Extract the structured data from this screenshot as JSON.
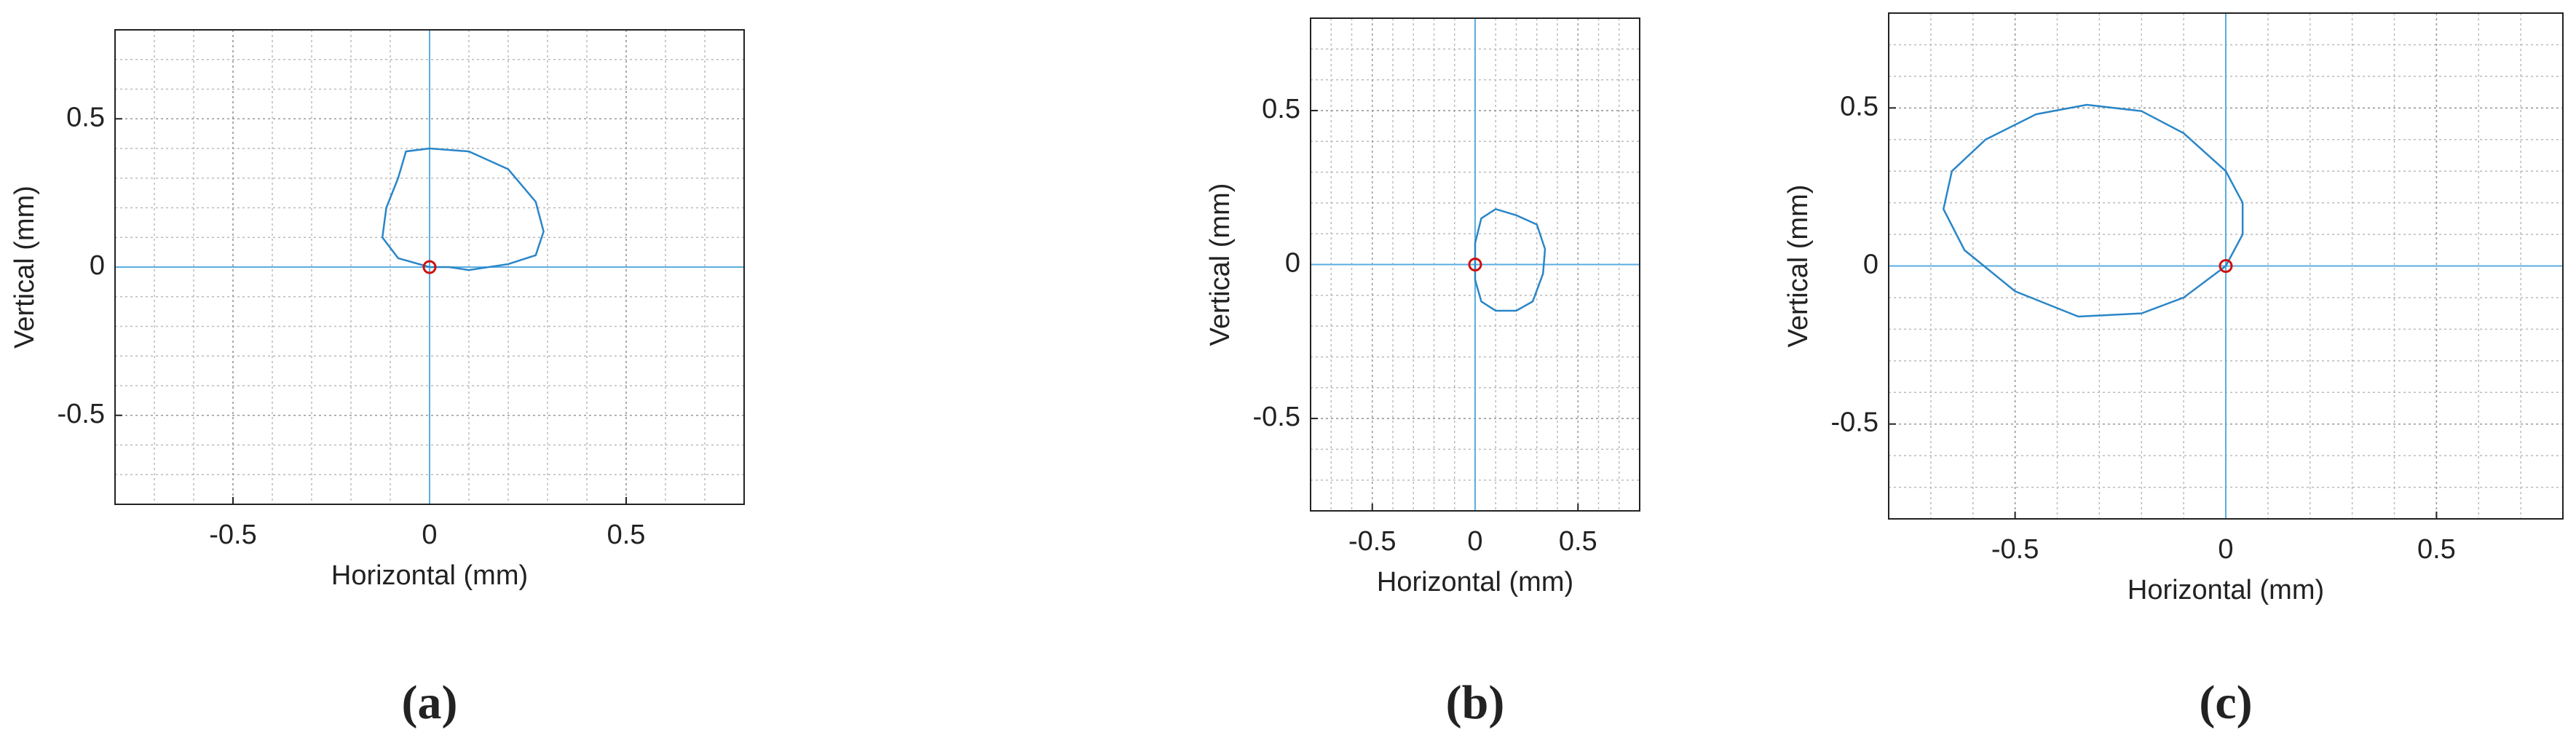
{
  "chart_data": [
    {
      "type": "line",
      "caption": "(a)",
      "x_label": "Horizontal (mm)",
      "y_label": "Vertical (mm)",
      "xlim": [
        -0.8,
        0.8
      ],
      "ylim": [
        -0.8,
        0.8
      ],
      "xticks": [
        -0.5,
        0,
        0.5
      ],
      "yticks": [
        -0.5,
        0,
        0.5
      ],
      "grid": true,
      "minor_grid": true,
      "series": [
        {
          "color": "#2a86c8",
          "x": [
            0,
            -0.08,
            -0.12,
            -0.11,
            -0.08,
            -0.06,
            0,
            0.1,
            0.2,
            0.27,
            0.29,
            0.27,
            0.2,
            0.1,
            0.05,
            0
          ],
          "values": [
            0,
            0.03,
            0.1,
            0.2,
            0.3,
            0.39,
            0.4,
            0.39,
            0.33,
            0.22,
            0.12,
            0.04,
            0.01,
            -0.01,
            0,
            0
          ]
        }
      ],
      "marker": {
        "x": 0,
        "y": 0,
        "color": "#d01010"
      }
    },
    {
      "type": "line",
      "caption": "(b)",
      "x_label": "Horizontal (mm)",
      "y_label": "Vertical (mm)",
      "xlim": [
        -0.8,
        0.8
      ],
      "ylim": [
        -0.8,
        0.8
      ],
      "xticks": [
        -0.5,
        0,
        0.5
      ],
      "yticks": [
        -0.5,
        0,
        0.5
      ],
      "grid": true,
      "minor_grid": true,
      "series": [
        {
          "color": "#2a86c8",
          "x": [
            0,
            0,
            0.03,
            0.1,
            0.2,
            0.3,
            0.34,
            0.33,
            0.28,
            0.2,
            0.1,
            0.03,
            0,
            0
          ],
          "values": [
            0,
            0.07,
            0.15,
            0.18,
            0.16,
            0.13,
            0.05,
            -0.03,
            -0.12,
            -0.15,
            -0.15,
            -0.12,
            -0.05,
            0
          ]
        }
      ],
      "marker": {
        "x": 0,
        "y": 0,
        "color": "#d01010"
      }
    },
    {
      "type": "line",
      "caption": "(c)",
      "x_label": "Horizontal (mm)",
      "y_label": "Vertical (mm)",
      "xlim": [
        -0.8,
        0.8
      ],
      "ylim": [
        -0.8,
        0.8
      ],
      "xticks": [
        -0.5,
        0,
        0.5
      ],
      "yticks": [
        -0.5,
        0,
        0.5
      ],
      "grid": true,
      "minor_grid": true,
      "series": [
        {
          "color": "#2a86c8",
          "x": [
            0,
            0.04,
            0.04,
            0,
            -0.1,
            -0.2,
            -0.33,
            -0.45,
            -0.57,
            -0.65,
            -0.67,
            -0.62,
            -0.5,
            -0.35,
            -0.2,
            -0.1,
            0
          ],
          "values": [
            0,
            0.1,
            0.2,
            0.3,
            0.42,
            0.49,
            0.51,
            0.48,
            0.4,
            0.3,
            0.18,
            0.05,
            -0.08,
            -0.16,
            -0.15,
            -0.1,
            0
          ]
        }
      ],
      "marker": {
        "x": 0,
        "y": 0,
        "color": "#d01010"
      }
    }
  ]
}
